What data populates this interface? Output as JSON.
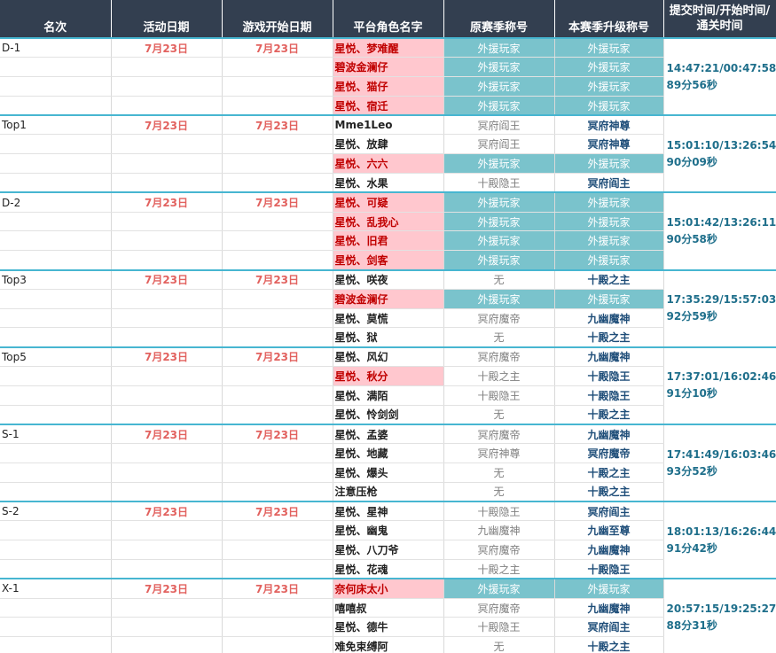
{
  "headers": [
    "名次",
    "活动日期",
    "游戏开始日期",
    "平台角色名字",
    "原赛季称号",
    "本赛季升级称号",
    "提交时间/开始时间/通关时间"
  ],
  "groups": [
    {
      "rank": "D-1",
      "activity_date": "7月23日",
      "start_date": "7月23日",
      "time": "14:47:21/00:47:58",
      "duration": "89分56秒",
      "rows": [
        {
          "player": "星悦、梦难醒",
          "player_pink": true,
          "orig": "外援玩家",
          "orig_teal": true,
          "upgrade": "外援玩家",
          "upgrade_teal": true
        },
        {
          "player": "碧波金澜仔",
          "player_pink": true,
          "orig": "外援玩家",
          "orig_teal": true,
          "upgrade": "外援玩家",
          "upgrade_teal": true
        },
        {
          "player": "星悦、猫仔",
          "player_pink": true,
          "orig": "外援玩家",
          "orig_teal": true,
          "upgrade": "外援玩家",
          "upgrade_teal": true
        },
        {
          "player": "星悦、宿迁",
          "player_pink": true,
          "orig": "外援玩家",
          "orig_teal": true,
          "upgrade": "外援玩家",
          "upgrade_teal": true
        }
      ]
    },
    {
      "rank": "Top1",
      "activity_date": "7月23日",
      "start_date": "7月23日",
      "time": "15:01:10/13:26:54",
      "duration": "90分09秒",
      "rows": [
        {
          "player": "Mme1Leo",
          "player_pink": false,
          "orig": "冥府阎王",
          "orig_teal": false,
          "upgrade": "冥府神尊",
          "upgrade_teal": false
        },
        {
          "player": "星悦、放肆",
          "player_pink": false,
          "orig": "冥府阎王",
          "orig_teal": false,
          "upgrade": "冥府神尊",
          "upgrade_teal": false
        },
        {
          "player": "星悦、六六",
          "player_pink": true,
          "orig": "外援玩家",
          "orig_teal": true,
          "upgrade": "外援玩家",
          "upgrade_teal": true
        },
        {
          "player": "星悦、水果",
          "player_pink": false,
          "orig": "十殿隐王",
          "orig_teal": false,
          "upgrade": "冥府阎主",
          "upgrade_teal": false
        }
      ]
    },
    {
      "rank": "D-2",
      "activity_date": "7月23日",
      "start_date": "7月23日",
      "time": "15:01:42/13:26:11",
      "duration": "90分58秒",
      "rows": [
        {
          "player": "星悦、可疑",
          "player_pink": true,
          "orig": "外援玩家",
          "orig_teal": true,
          "upgrade": "外援玩家",
          "upgrade_teal": true
        },
        {
          "player": "星悦、乱我心",
          "player_pink": true,
          "orig": "外援玩家",
          "orig_teal": true,
          "upgrade": "外援玩家",
          "upgrade_teal": true
        },
        {
          "player": "星悦、旧君",
          "player_pink": true,
          "orig": "外援玩家",
          "orig_teal": true,
          "upgrade": "外援玩家",
          "upgrade_teal": true
        },
        {
          "player": "星悦、剑客",
          "player_pink": true,
          "orig": "外援玩家",
          "orig_teal": true,
          "upgrade": "外援玩家",
          "upgrade_teal": true
        }
      ]
    },
    {
      "rank": "Top3",
      "activity_date": "7月23日",
      "start_date": "7月23日",
      "time": "17:35:29/15:57:03",
      "duration": "92分59秒",
      "rows": [
        {
          "player": "星悦、咲夜",
          "player_pink": false,
          "orig": "无",
          "orig_teal": false,
          "upgrade": "十殿之主",
          "upgrade_teal": false
        },
        {
          "player": "碧波金澜仔",
          "player_pink": true,
          "orig": "外援玩家",
          "orig_teal": true,
          "upgrade": "外援玩家",
          "upgrade_teal": true
        },
        {
          "player": "星悦、莫慌",
          "player_pink": false,
          "orig": "冥府魔帝",
          "orig_teal": false,
          "upgrade": "九幽魔神",
          "upgrade_teal": false
        },
        {
          "player": "星悦、狱",
          "player_pink": false,
          "orig": "无",
          "orig_teal": false,
          "upgrade": "十殿之主",
          "upgrade_teal": false
        }
      ]
    },
    {
      "rank": "Top5",
      "activity_date": "7月23日",
      "start_date": "7月23日",
      "time": "17:37:01/16:02:46",
      "duration": "91分10秒",
      "rows": [
        {
          "player": "星悦、风幻",
          "player_pink": false,
          "orig": "冥府魔帝",
          "orig_teal": false,
          "upgrade": "九幽魔神",
          "upgrade_teal": false
        },
        {
          "player": "星悦、秋分",
          "player_pink": true,
          "orig": "十殿之主",
          "orig_teal": false,
          "upgrade": "十殿隐王",
          "upgrade_teal": false
        },
        {
          "player": "星悦、满陌",
          "player_pink": false,
          "orig": "十殿隐王",
          "orig_teal": false,
          "upgrade": "十殿隐王",
          "upgrade_teal": false
        },
        {
          "player": "星悦、怜剑剑",
          "player_pink": false,
          "orig": "无",
          "orig_teal": false,
          "upgrade": "十殿之主",
          "upgrade_teal": false
        }
      ]
    },
    {
      "rank": "S-1",
      "activity_date": "7月23日",
      "start_date": "7月23日",
      "time": "17:41:49/16:03:46",
      "duration": "93分52秒",
      "rows": [
        {
          "player": "星悦、孟婆",
          "player_pink": false,
          "orig": "冥府魔帝",
          "orig_teal": false,
          "upgrade": "九幽魔神",
          "upgrade_teal": false
        },
        {
          "player": "星悦、地藏",
          "player_pink": false,
          "orig": "冥府神尊",
          "orig_teal": false,
          "upgrade": "冥府魔帝",
          "upgrade_teal": false
        },
        {
          "player": "星悦、爆头",
          "player_pink": false,
          "orig": "无",
          "orig_teal": false,
          "upgrade": "十殿之主",
          "upgrade_teal": false
        },
        {
          "player": "注意压枪",
          "player_pink": false,
          "orig": "无",
          "orig_teal": false,
          "upgrade": "十殿之主",
          "upgrade_teal": false
        }
      ]
    },
    {
      "rank": "S-2",
      "activity_date": "7月23日",
      "start_date": "7月23日",
      "time": "18:01:13/16:26:44",
      "duration": "91分42秒",
      "rows": [
        {
          "player": "星悦、星神",
          "player_pink": false,
          "orig": "十殿隐王",
          "orig_teal": false,
          "upgrade": "冥府阎主",
          "upgrade_teal": false
        },
        {
          "player": "星悦、幽鬼",
          "player_pink": false,
          "orig": "九幽魔神",
          "orig_teal": false,
          "upgrade": "九幽至尊",
          "upgrade_teal": false
        },
        {
          "player": "星悦、八刀爷",
          "player_pink": false,
          "orig": "冥府魔帝",
          "orig_teal": false,
          "upgrade": "九幽魔神",
          "upgrade_teal": false
        },
        {
          "player": "星悦、花魂",
          "player_pink": false,
          "orig": "十殿之主",
          "orig_teal": false,
          "upgrade": "十殿隐王",
          "upgrade_teal": false
        }
      ]
    },
    {
      "rank": "X-1",
      "activity_date": "7月23日",
      "start_date": "7月23日",
      "time": "20:57:15/19:25:27",
      "duration": "88分31秒",
      "rows": [
        {
          "player": "奈何床太小",
          "player_pink": true,
          "orig": "外援玩家",
          "orig_teal": true,
          "upgrade": "外援玩家",
          "upgrade_teal": true
        },
        {
          "player": "嘻嘻叔",
          "player_pink": false,
          "orig": "冥府魔帝",
          "orig_teal": false,
          "upgrade": "九幽魔神",
          "upgrade_teal": false
        },
        {
          "player": "星悦、德牛",
          "player_pink": false,
          "orig": "十殿隐王",
          "orig_teal": false,
          "upgrade": "冥府阎主",
          "upgrade_teal": false
        },
        {
          "player": "难免束缚阿",
          "player_pink": false,
          "orig": "无",
          "orig_teal": false,
          "upgrade": "十殿之主",
          "upgrade_teal": false
        }
      ]
    }
  ]
}
